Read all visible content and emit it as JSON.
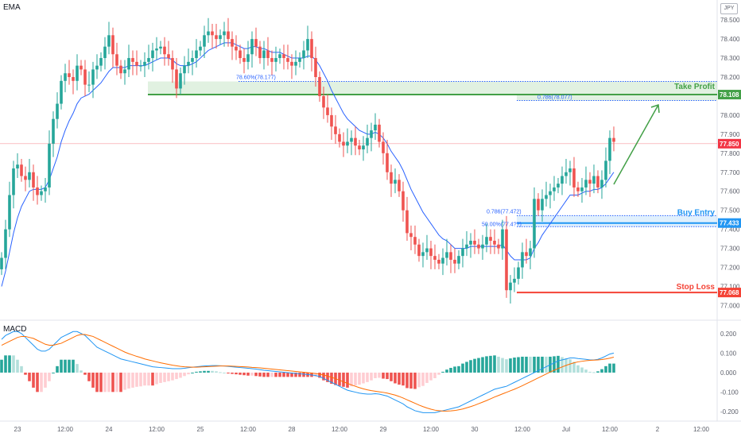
{
  "indicators": {
    "top": "EMA",
    "bottom": "MACD"
  },
  "currency": "JPY",
  "chart_data": {
    "type": "candlestick",
    "price_axis": {
      "ylim": [
        76.96,
        78.58
      ],
      "ticks": [
        "78.500",
        "78.400",
        "78.300",
        "78.200",
        "78.100",
        "78.000",
        "77.900",
        "77.800",
        "77.700",
        "77.600",
        "77.500",
        "77.400",
        "77.300",
        "77.200",
        "77.100",
        "77.000"
      ]
    },
    "macd_axis": {
      "ylim": [
        -0.24,
        0.26
      ],
      "ticks": [
        "0.200",
        "0.100",
        "0.000",
        "-0.100",
        "-0.200"
      ]
    },
    "x_ticks": [
      {
        "label": "23",
        "i": 4
      },
      {
        "label": "12:00",
        "i": 16
      },
      {
        "label": "24",
        "i": 27
      },
      {
        "label": "12:00",
        "i": 39
      },
      {
        "label": "25",
        "i": 50
      },
      {
        "label": "12:00",
        "i": 62
      },
      {
        "label": "28",
        "i": 73
      },
      {
        "label": "12:00",
        "i": 85
      },
      {
        "label": "29",
        "i": 96
      },
      {
        "label": "12:00",
        "i": 108
      },
      {
        "label": "30",
        "i": 119
      },
      {
        "label": "12:00",
        "i": 131
      },
      {
        "label": "Jul",
        "i": 142
      },
      {
        "label": "12:00",
        "i": 153
      },
      {
        "label": "2",
        "i": 165
      },
      {
        "label": "12:00",
        "i": 176
      }
    ],
    "close": [
      77.25,
      77.4,
      77.58,
      77.72,
      77.74,
      77.68,
      77.66,
      77.7,
      77.62,
      77.58,
      77.6,
      77.62,
      77.85,
      77.98,
      78.06,
      78.18,
      78.22,
      78.2,
      78.18,
      78.26,
      78.24,
      78.16,
      78.16,
      78.24,
      78.26,
      78.3,
      78.36,
      78.42,
      78.32,
      78.26,
      78.22,
      78.24,
      78.3,
      78.28,
      78.26,
      78.26,
      78.28,
      78.3,
      78.34,
      78.35,
      78.36,
      78.32,
      78.3,
      78.24,
      78.14,
      78.22,
      78.26,
      78.28,
      78.3,
      78.34,
      78.36,
      78.42,
      78.44,
      78.42,
      78.4,
      78.42,
      78.44,
      78.4,
      78.36,
      78.34,
      78.3,
      78.28,
      78.32,
      78.4,
      78.36,
      78.3,
      78.34,
      78.3,
      78.28,
      78.3,
      78.32,
      78.3,
      78.28,
      78.26,
      78.28,
      78.3,
      78.34,
      78.4,
      78.3,
      78.2,
      78.1,
      78.04,
      78.0,
      77.94,
      77.9,
      77.86,
      77.84,
      77.86,
      77.88,
      77.84,
      77.82,
      77.84,
      77.88,
      77.92,
      77.95,
      77.86,
      77.8,
      77.7,
      77.64,
      77.66,
      77.6,
      77.5,
      77.38,
      77.36,
      77.32,
      77.26,
      77.28,
      77.3,
      77.26,
      77.24,
      77.22,
      77.25,
      77.28,
      77.24,
      77.22,
      77.26,
      77.3,
      77.32,
      77.34,
      77.32,
      77.3,
      77.32,
      77.36,
      77.34,
      77.32,
      77.3,
      77.4,
      77.08,
      77.12,
      77.14,
      77.2,
      77.28,
      77.26,
      77.3,
      77.56,
      77.5,
      77.56,
      77.58,
      77.6,
      77.62,
      77.64,
      77.68,
      77.7,
      77.72,
      77.62,
      77.6,
      77.62,
      77.66,
      77.64,
      77.68,
      77.62,
      77.66,
      77.76,
      77.88,
      77.86
    ],
    "ema": [
      77.1,
      77.18,
      77.28,
      77.38,
      77.46,
      77.52,
      77.56,
      77.6,
      77.61,
      77.61,
      77.61,
      77.62,
      77.66,
      77.72,
      77.78,
      77.86,
      77.92,
      77.97,
      78.01,
      78.06,
      78.09,
      78.1,
      78.11,
      78.13,
      78.15,
      78.17,
      78.2,
      78.23,
      78.25,
      78.25,
      78.25,
      78.25,
      78.26,
      78.26,
      78.26,
      78.26,
      78.26,
      78.27,
      78.28,
      78.29,
      78.3,
      78.3,
      78.3,
      78.29,
      78.27,
      78.26,
      78.26,
      78.26,
      78.27,
      78.28,
      78.3,
      78.32,
      78.34,
      78.35,
      78.36,
      78.37,
      78.38,
      78.38,
      78.38,
      78.37,
      78.36,
      78.35,
      78.35,
      78.36,
      78.36,
      78.35,
      78.35,
      78.34,
      78.33,
      78.33,
      78.33,
      78.32,
      78.31,
      78.3,
      78.3,
      78.3,
      78.3,
      78.31,
      78.31,
      78.29,
      78.26,
      78.22,
      78.18,
      78.13,
      78.09,
      78.05,
      78.01,
      77.98,
      77.96,
      77.94,
      77.92,
      77.91,
      77.9,
      77.9,
      77.91,
      77.9,
      77.88,
      77.85,
      77.81,
      77.78,
      77.75,
      77.71,
      77.66,
      77.61,
      77.57,
      77.53,
      77.49,
      77.46,
      77.43,
      77.4,
      77.37,
      77.35,
      77.34,
      77.32,
      77.3,
      77.3,
      77.3,
      77.3,
      77.31,
      77.31,
      77.31,
      77.31,
      77.31,
      77.31,
      77.31,
      77.31,
      77.32,
      77.29,
      77.26,
      77.24,
      77.24,
      77.24,
      77.24,
      77.25,
      77.3,
      77.33,
      77.37,
      77.4,
      77.43,
      77.46,
      77.49,
      77.52,
      77.55,
      77.58,
      77.58,
      77.58,
      77.59,
      77.6,
      77.6,
      77.61,
      77.61,
      77.62,
      77.64,
      77.67,
      77.7
    ],
    "macd": [
      0.17,
      0.19,
      0.2,
      0.21,
      0.21,
      0.2,
      0.18,
      0.16,
      0.14,
      0.12,
      0.11,
      0.11,
      0.12,
      0.14,
      0.16,
      0.18,
      0.19,
      0.2,
      0.21,
      0.21,
      0.2,
      0.19,
      0.17,
      0.15,
      0.13,
      0.12,
      0.11,
      0.1,
      0.09,
      0.08,
      0.07,
      0.065,
      0.06,
      0.055,
      0.05,
      0.045,
      0.04,
      0.035,
      0.03,
      0.028,
      0.026,
      0.024,
      0.022,
      0.02,
      0.02,
      0.02,
      0.022,
      0.025,
      0.028,
      0.03,
      0.032,
      0.034,
      0.035,
      0.036,
      0.036,
      0.035,
      0.034,
      0.032,
      0.03,
      0.028,
      0.026,
      0.024,
      0.022,
      0.02,
      0.018,
      0.015,
      0.012,
      0.01,
      0.008,
      0.006,
      0.004,
      0.002,
      0.0,
      -0.002,
      -0.004,
      -0.006,
      -0.008,
      -0.01,
      -0.012,
      -0.015,
      -0.02,
      -0.03,
      -0.04,
      -0.05,
      -0.06,
      -0.07,
      -0.08,
      -0.09,
      -0.095,
      -0.1,
      -0.105,
      -0.108,
      -0.11,
      -0.11,
      -0.108,
      -0.11,
      -0.115,
      -0.12,
      -0.13,
      -0.14,
      -0.15,
      -0.16,
      -0.175,
      -0.185,
      -0.195,
      -0.2,
      -0.205,
      -0.205,
      -0.205,
      -0.205,
      -0.2,
      -0.195,
      -0.19,
      -0.185,
      -0.18,
      -0.175,
      -0.165,
      -0.155,
      -0.145,
      -0.135,
      -0.125,
      -0.115,
      -0.105,
      -0.095,
      -0.085,
      -0.08,
      -0.075,
      -0.07,
      -0.06,
      -0.05,
      -0.04,
      -0.03,
      -0.02,
      -0.01,
      0.0,
      0.01,
      0.02,
      0.03,
      0.04,
      0.05,
      0.06,
      0.065,
      0.07,
      0.075,
      0.075,
      0.072,
      0.07,
      0.068,
      0.065,
      0.065,
      0.068,
      0.075,
      0.085,
      0.095,
      0.1
    ],
    "signal": [
      0.14,
      0.15,
      0.16,
      0.17,
      0.18,
      0.185,
      0.185,
      0.18,
      0.175,
      0.165,
      0.155,
      0.145,
      0.14,
      0.14,
      0.145,
      0.15,
      0.16,
      0.17,
      0.18,
      0.19,
      0.195,
      0.195,
      0.19,
      0.185,
      0.175,
      0.165,
      0.155,
      0.145,
      0.135,
      0.125,
      0.115,
      0.105,
      0.097,
      0.09,
      0.083,
      0.077,
      0.07,
      0.065,
      0.06,
      0.055,
      0.05,
      0.046,
      0.042,
      0.038,
      0.035,
      0.032,
      0.03,
      0.029,
      0.028,
      0.028,
      0.029,
      0.03,
      0.031,
      0.032,
      0.033,
      0.034,
      0.034,
      0.034,
      0.033,
      0.032,
      0.031,
      0.03,
      0.029,
      0.027,
      0.026,
      0.024,
      0.022,
      0.02,
      0.018,
      0.016,
      0.014,
      0.012,
      0.01,
      0.008,
      0.006,
      0.004,
      0.002,
      0.0,
      -0.002,
      -0.005,
      -0.008,
      -0.012,
      -0.018,
      -0.024,
      -0.031,
      -0.039,
      -0.047,
      -0.055,
      -0.063,
      -0.07,
      -0.077,
      -0.083,
      -0.088,
      -0.092,
      -0.095,
      -0.098,
      -0.101,
      -0.105,
      -0.11,
      -0.115,
      -0.122,
      -0.13,
      -0.139,
      -0.148,
      -0.157,
      -0.166,
      -0.174,
      -0.181,
      -0.187,
      -0.192,
      -0.195,
      -0.197,
      -0.197,
      -0.196,
      -0.194,
      -0.19,
      -0.186,
      -0.18,
      -0.174,
      -0.167,
      -0.159,
      -0.151,
      -0.143,
      -0.134,
      -0.125,
      -0.117,
      -0.109,
      -0.101,
      -0.093,
      -0.085,
      -0.076,
      -0.067,
      -0.057,
      -0.047,
      -0.037,
      -0.027,
      -0.017,
      -0.007,
      0.003,
      0.012,
      0.021,
      0.029,
      0.037,
      0.044,
      0.05,
      0.055,
      0.058,
      0.061,
      0.063,
      0.064,
      0.065,
      0.067,
      0.07,
      0.074,
      0.079
    ],
    "annotations": {
      "take_profit": {
        "label": "Take Profit",
        "price": 78.108,
        "badge": "78.108",
        "zone_top": 78.177,
        "fib_upper": "78.60%(78.177)",
        "fib_lower": "0.786(78.077)",
        "fib_lower_price": 78.077
      },
      "buy_entry": {
        "label": "Buy Entry",
        "price": 77.433,
        "badge": "77.433",
        "fib_upper": "0.786(77.472)",
        "fib_upper_price": 77.472,
        "fib_lower": "50.00%(77.4??)",
        "fib_lower_price": 77.414
      },
      "stop_loss": {
        "label": "Stop Loss",
        "price": 77.068,
        "badge": "77.068"
      },
      "current": {
        "price": 77.85,
        "badge": "77.850"
      }
    }
  },
  "colors": {
    "up": "#26a69a",
    "down": "#ef5350",
    "ema": "#2962ff",
    "macd": "#2196f3",
    "signal": "#ff6d00",
    "hist_up": "#26a69a",
    "hist_up_light": "#b2dfdb",
    "hist_down": "#ef5350",
    "hist_down_light": "#ffcdd2",
    "take_profit": "#43a047",
    "buy_entry": "#2196f3",
    "stop_loss": "#f44336",
    "current": "#f23645"
  }
}
